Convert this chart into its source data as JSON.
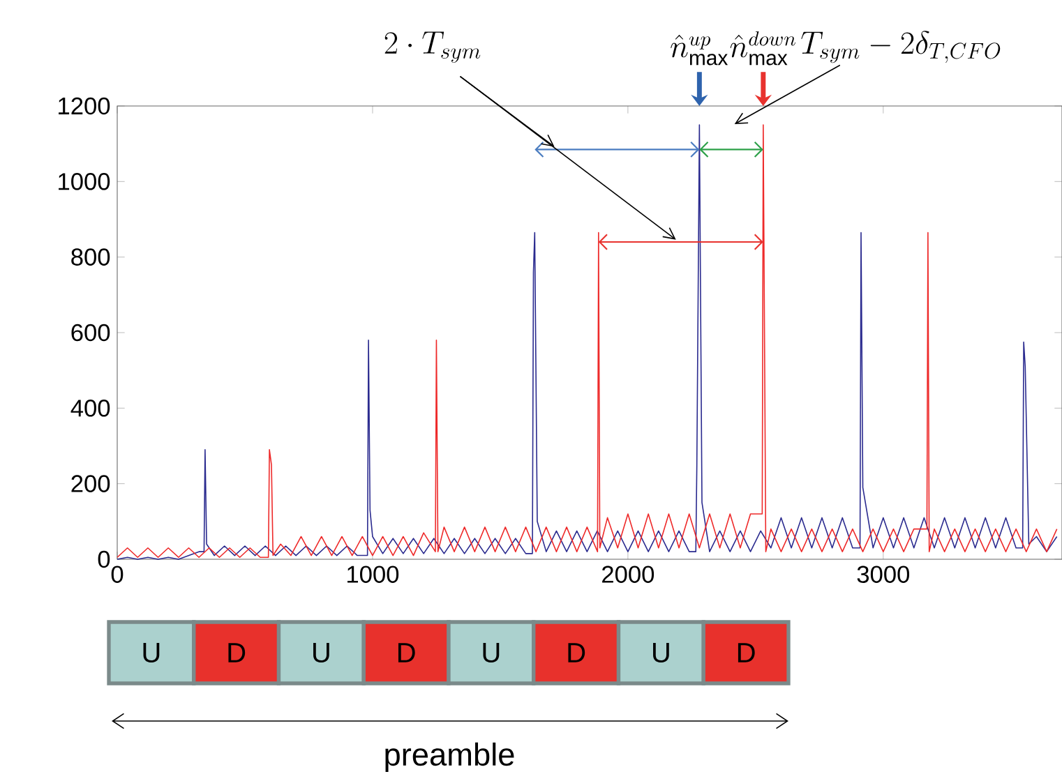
{
  "chart_data": {
    "type": "line",
    "xlim": [
      0,
      3700
    ],
    "ylim": [
      0,
      1200
    ],
    "xticks": [
      0,
      1000,
      2000,
      3000
    ],
    "yticks": [
      0,
      200,
      400,
      600,
      800,
      1000,
      1200
    ],
    "series": [
      {
        "color": "#2b2b8f",
        "x": [
          0,
          40,
          80,
          120,
          160,
          200,
          240,
          280,
          320,
          340,
          344,
          350,
          380,
          420,
          460,
          500,
          540,
          580,
          620,
          660,
          700,
          740,
          780,
          820,
          860,
          900,
          940,
          980,
          984,
          990,
          1000,
          1040,
          1080,
          1120,
          1160,
          1200,
          1240,
          1280,
          1320,
          1360,
          1400,
          1440,
          1480,
          1520,
          1560,
          1600,
          1626,
          1630,
          1635,
          1645,
          1680,
          1720,
          1760,
          1800,
          1840,
          1880,
          1920,
          1960,
          2000,
          2040,
          2080,
          2120,
          2160,
          2200,
          2240,
          2266,
          2270,
          2280,
          2290,
          2320,
          2360,
          2400,
          2440,
          2480,
          2520,
          2560,
          2600,
          2640,
          2680,
          2720,
          2760,
          2800,
          2840,
          2880,
          2909,
          2913,
          2920,
          2960,
          3000,
          3040,
          3080,
          3120,
          3160,
          3200,
          3240,
          3280,
          3320,
          3360,
          3400,
          3440,
          3480,
          3520,
          3546,
          3550,
          3556,
          3570,
          3600,
          3640,
          3680
        ],
        "values": [
          0,
          5,
          0,
          5,
          0,
          5,
          0,
          10,
          20,
          20,
          290,
          40,
          10,
          35,
          10,
          35,
          10,
          35,
          10,
          35,
          10,
          35,
          10,
          35,
          10,
          35,
          10,
          10,
          580,
          130,
          60,
          15,
          55,
          15,
          55,
          15,
          55,
          15,
          55,
          15,
          55,
          15,
          55,
          15,
          55,
          15,
          15,
          760,
          865,
          100,
          20,
          75,
          20,
          75,
          20,
          75,
          20,
          75,
          20,
          75,
          20,
          75,
          20,
          75,
          20,
          20,
          250,
          1150,
          150,
          20,
          75,
          20,
          75,
          20,
          75,
          30,
          110,
          30,
          110,
          30,
          110,
          30,
          110,
          30,
          30,
          865,
          190,
          30,
          110,
          30,
          110,
          30,
          110,
          30,
          110,
          30,
          110,
          30,
          110,
          30,
          110,
          30,
          30,
          575,
          510,
          40,
          60,
          20,
          60
        ]
      },
      {
        "color": "#ee2a2a",
        "x": [
          0,
          40,
          80,
          120,
          160,
          200,
          240,
          280,
          320,
          360,
          400,
          440,
          480,
          520,
          560,
          592,
          596,
          604,
          610,
          640,
          680,
          720,
          760,
          800,
          840,
          880,
          920,
          960,
          1000,
          1040,
          1080,
          1120,
          1160,
          1200,
          1246,
          1250,
          1256,
          1280,
          1320,
          1360,
          1400,
          1440,
          1480,
          1520,
          1560,
          1600,
          1640,
          1680,
          1720,
          1760,
          1800,
          1840,
          1881,
          1885,
          1890,
          1920,
          1960,
          2000,
          2040,
          2080,
          2120,
          2160,
          2200,
          2240,
          2280,
          2320,
          2360,
          2400,
          2440,
          2480,
          2526,
          2530,
          2540,
          2560,
          2600,
          2640,
          2680,
          2720,
          2760,
          2800,
          2840,
          2880,
          2920,
          2960,
          3000,
          3040,
          3080,
          3120,
          3171,
          3175,
          3180,
          3200,
          3240,
          3280,
          3320,
          3360,
          3400,
          3440,
          3480,
          3520,
          3560,
          3600,
          3640,
          3680
        ],
        "values": [
          5,
          30,
          5,
          30,
          5,
          30,
          5,
          30,
          5,
          30,
          5,
          30,
          5,
          30,
          5,
          5,
          290,
          250,
          10,
          40,
          10,
          60,
          10,
          60,
          10,
          60,
          10,
          60,
          10,
          60,
          10,
          60,
          10,
          70,
          20,
          580,
          20,
          85,
          20,
          85,
          20,
          85,
          20,
          85,
          20,
          85,
          20,
          85,
          20,
          85,
          20,
          85,
          20,
          865,
          30,
          110,
          30,
          120,
          30,
          120,
          30,
          120,
          30,
          120,
          30,
          120,
          30,
          120,
          30,
          120,
          120,
          1150,
          20,
          80,
          20,
          80,
          20,
          80,
          20,
          80,
          20,
          80,
          20,
          80,
          20,
          80,
          20,
          80,
          80,
          865,
          20,
          80,
          20,
          80,
          20,
          80,
          20,
          80,
          20,
          80,
          20,
          80,
          20,
          80
        ]
      }
    ],
    "annotations": [
      "2\\cdot T_{sym}",
      "\\hat{n}_{\\max}^{up}",
      "\\hat{n}_{\\max}^{down}",
      "T_{sym}-2\\delta_{T,CFO}",
      "U",
      "D",
      "U",
      "D",
      "U",
      "D",
      "U",
      "D",
      "preamble"
    ]
  }
}
